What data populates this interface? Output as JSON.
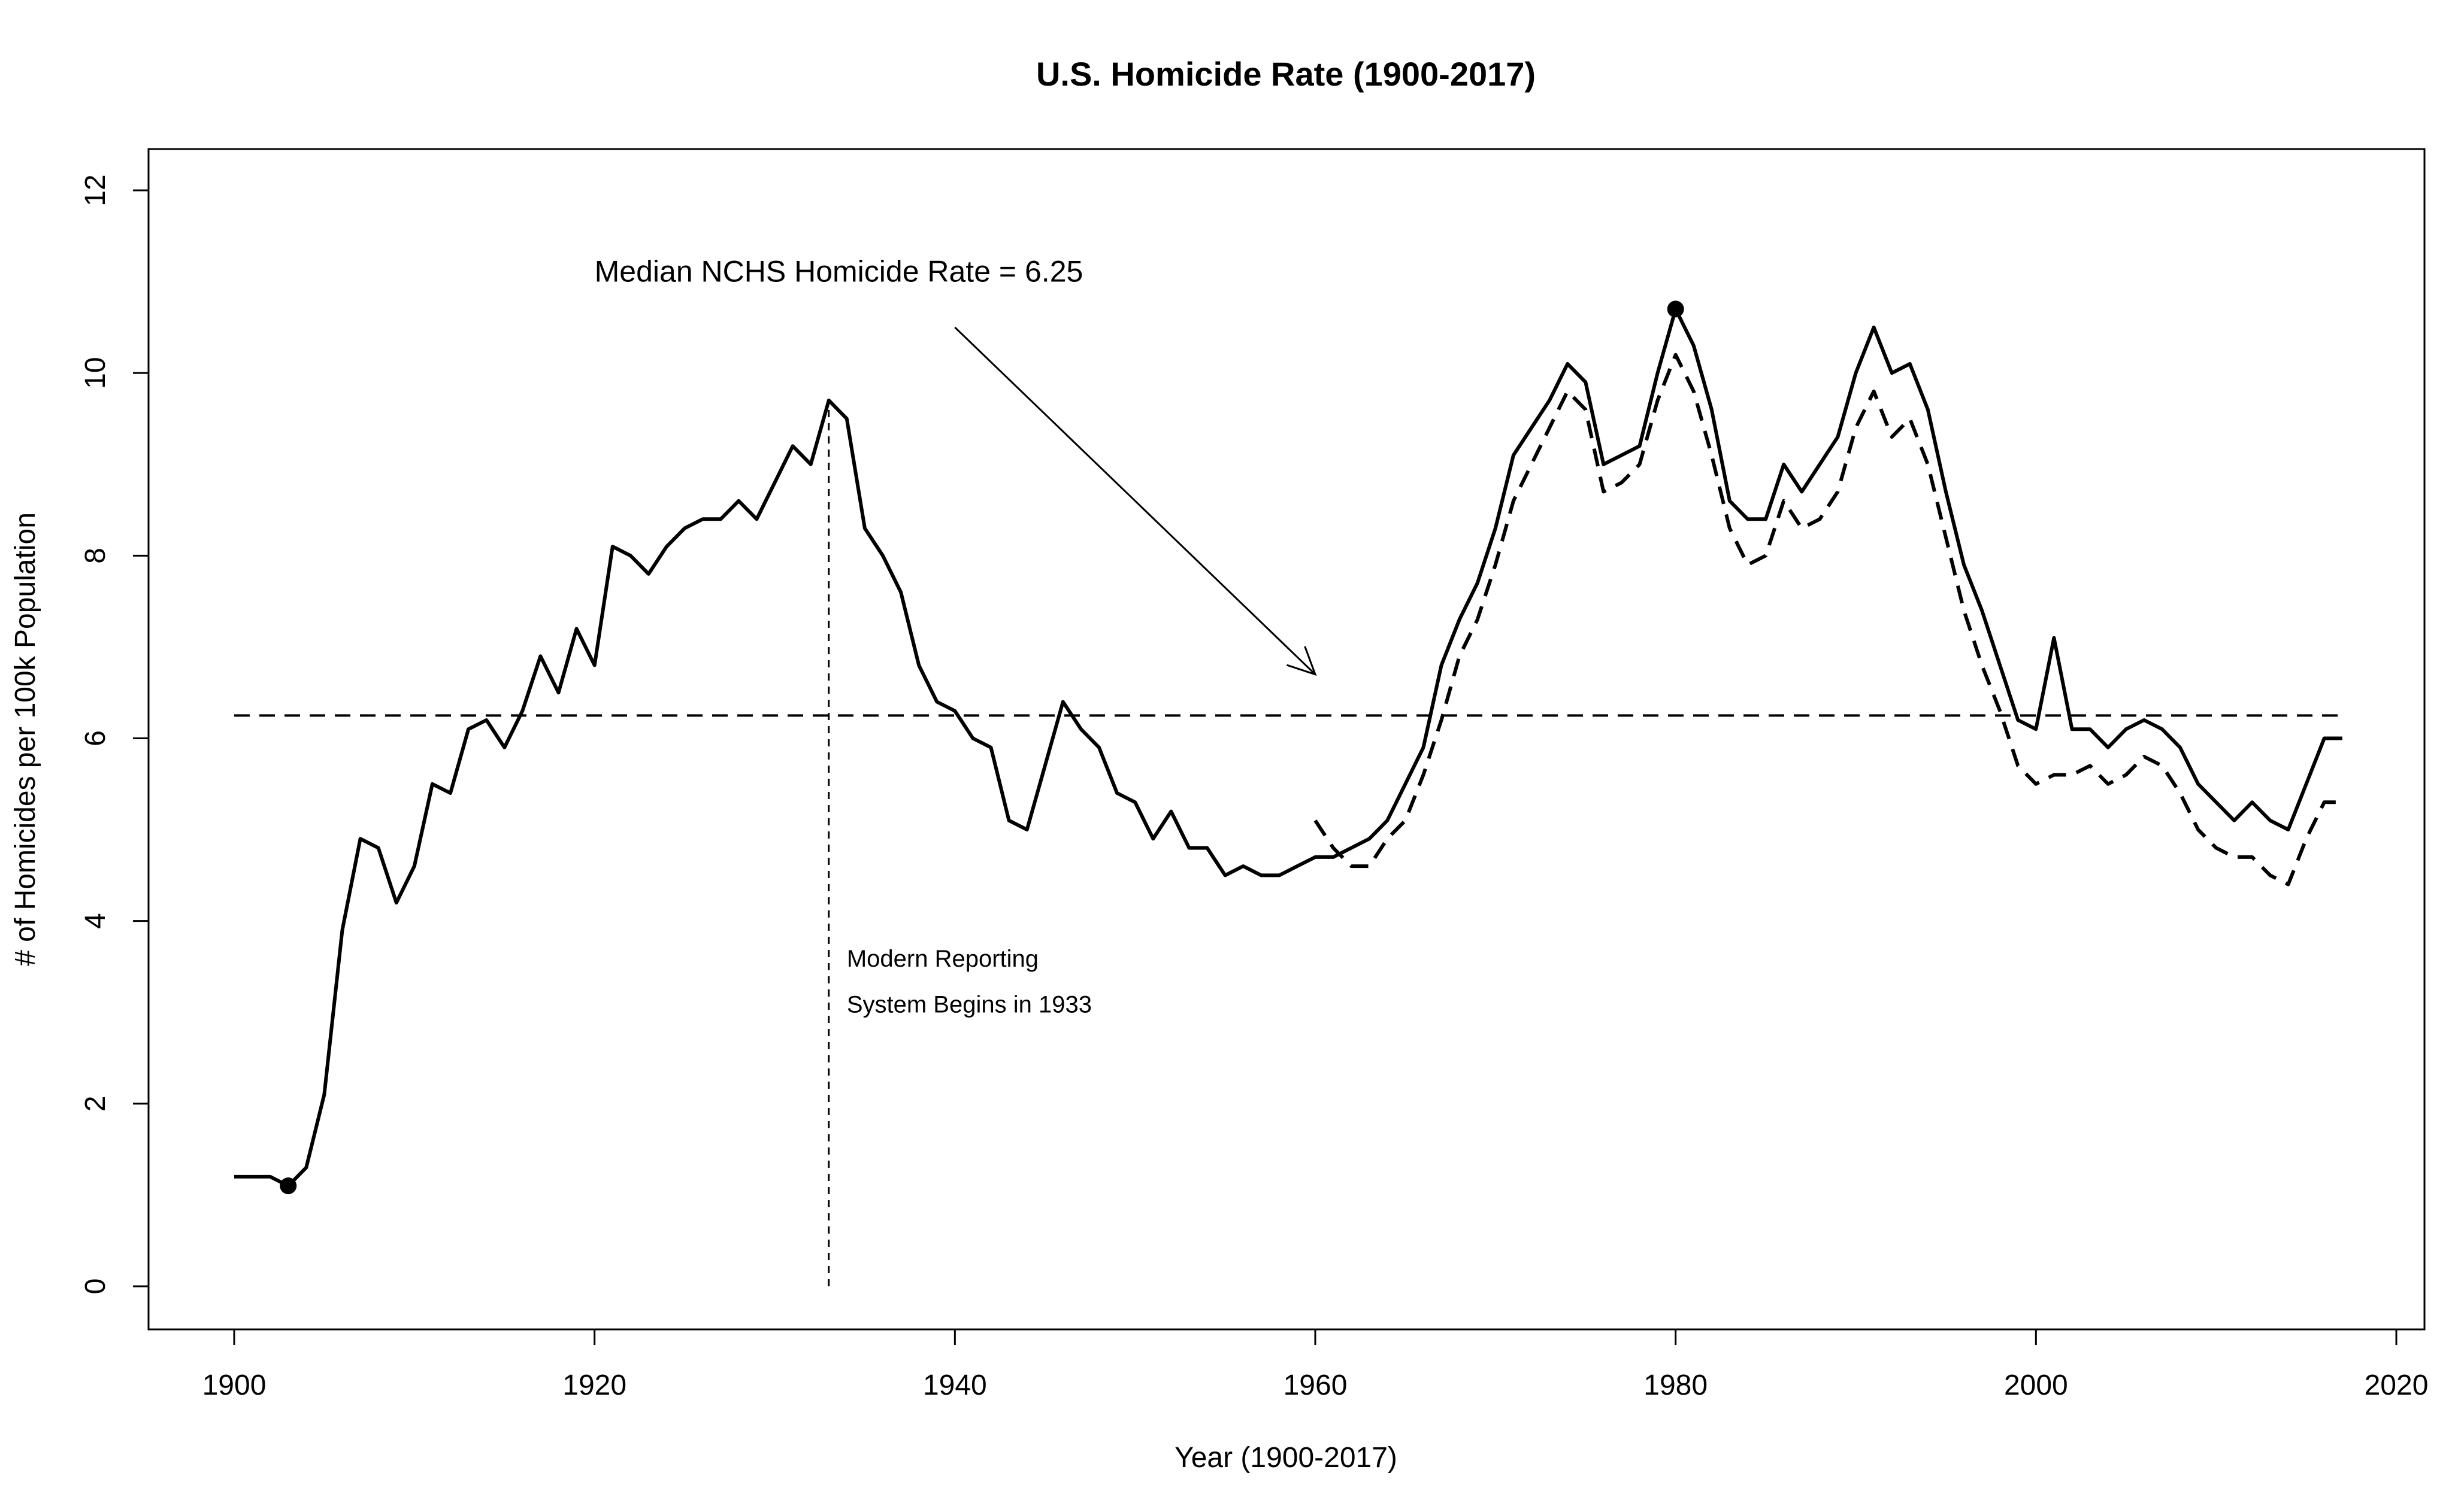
{
  "chart_data": {
    "type": "line",
    "title": "U.S. Homicide Rate (1900-2017)",
    "xlabel": "Year (1900-2017)",
    "ylabel": "# of Homicides per 100k Population",
    "xlim": [
      1900,
      2020
    ],
    "ylim": [
      0,
      12
    ],
    "xticks": [
      1900,
      1920,
      1940,
      1960,
      1980,
      2000,
      2020
    ],
    "yticks": [
      0,
      2,
      4,
      6,
      8,
      10,
      12
    ],
    "grid": false,
    "legend": "none",
    "series": [
      {
        "style": "solid",
        "x": [
          1900,
          1901,
          1902,
          1903,
          1904,
          1905,
          1906,
          1907,
          1908,
          1909,
          1910,
          1911,
          1912,
          1913,
          1914,
          1915,
          1916,
          1917,
          1918,
          1919,
          1920,
          1921,
          1922,
          1923,
          1924,
          1925,
          1926,
          1927,
          1928,
          1929,
          1930,
          1931,
          1932,
          1933,
          1934,
          1935,
          1936,
          1937,
          1938,
          1939,
          1940,
          1941,
          1942,
          1943,
          1944,
          1945,
          1946,
          1947,
          1948,
          1949,
          1950,
          1951,
          1952,
          1953,
          1954,
          1955,
          1956,
          1957,
          1958,
          1959,
          1960,
          1961,
          1962,
          1963,
          1964,
          1965,
          1966,
          1967,
          1968,
          1969,
          1970,
          1971,
          1972,
          1973,
          1974,
          1975,
          1976,
          1977,
          1978,
          1979,
          1980,
          1981,
          1982,
          1983,
          1984,
          1985,
          1986,
          1987,
          1988,
          1989,
          1990,
          1991,
          1992,
          1993,
          1994,
          1995,
          1996,
          1997,
          1998,
          1999,
          2000,
          2001,
          2002,
          2003,
          2004,
          2005,
          2006,
          2007,
          2008,
          2009,
          2010,
          2011,
          2012,
          2013,
          2014,
          2015,
          2016,
          2017
        ],
        "y": [
          1.2,
          1.2,
          1.2,
          1.1,
          1.3,
          2.1,
          3.9,
          4.9,
          4.8,
          4.2,
          4.6,
          5.5,
          5.4,
          6.1,
          6.2,
          5.9,
          6.3,
          6.9,
          6.5,
          7.2,
          6.8,
          8.1,
          8.0,
          7.8,
          8.1,
          8.3,
          8.4,
          8.4,
          8.6,
          8.4,
          8.8,
          9.2,
          9.0,
          9.7,
          9.5,
          8.3,
          8.0,
          7.6,
          6.8,
          6.4,
          6.3,
          6.0,
          5.9,
          5.1,
          5.0,
          5.7,
          6.4,
          6.1,
          5.9,
          5.4,
          5.3,
          4.9,
          5.2,
          4.8,
          4.8,
          4.5,
          4.6,
          4.5,
          4.5,
          4.6,
          4.7,
          4.7,
          4.8,
          4.9,
          5.1,
          5.5,
          5.9,
          6.8,
          7.3,
          7.7,
          8.3,
          9.1,
          9.4,
          9.7,
          10.1,
          9.9,
          9.0,
          9.1,
          9.2,
          10.0,
          10.7,
          10.3,
          9.6,
          8.6,
          8.4,
          8.4,
          9.0,
          8.7,
          9.0,
          9.3,
          10.0,
          10.5,
          10.0,
          10.1,
          9.6,
          8.7,
          7.9,
          7.4,
          6.8,
          6.2,
          6.1,
          7.1,
          6.1,
          6.1,
          5.9,
          6.1,
          6.2,
          6.1,
          5.9,
          5.5,
          5.3,
          5.1,
          5.3,
          5.1,
          5.0,
          5.5,
          6.0,
          6.0
        ]
      },
      {
        "style": "dashed",
        "x": [
          1960,
          1961,
          1962,
          1963,
          1964,
          1965,
          1966,
          1967,
          1968,
          1969,
          1970,
          1971,
          1972,
          1973,
          1974,
          1975,
          1976,
          1977,
          1978,
          1979,
          1980,
          1981,
          1982,
          1983,
          1984,
          1985,
          1986,
          1987,
          1988,
          1989,
          1990,
          1991,
          1992,
          1993,
          1994,
          1995,
          1996,
          1997,
          1998,
          1999,
          2000,
          2001,
          2002,
          2003,
          2004,
          2005,
          2006,
          2007,
          2008,
          2009,
          2010,
          2011,
          2012,
          2013,
          2014,
          2015,
          2016,
          2017
        ],
        "y": [
          5.1,
          4.8,
          4.6,
          4.6,
          4.9,
          5.1,
          5.6,
          6.2,
          6.9,
          7.3,
          7.9,
          8.6,
          9.0,
          9.4,
          9.8,
          9.6,
          8.7,
          8.8,
          9.0,
          9.7,
          10.2,
          9.8,
          9.1,
          8.3,
          7.9,
          8.0,
          8.6,
          8.3,
          8.4,
          8.7,
          9.4,
          9.8,
          9.3,
          9.5,
          9.0,
          8.2,
          7.4,
          6.8,
          6.3,
          5.7,
          5.5,
          5.6,
          5.6,
          5.7,
          5.5,
          5.6,
          5.8,
          5.7,
          5.4,
          5.0,
          4.8,
          4.7,
          4.7,
          4.5,
          4.4,
          4.9,
          5.3,
          5.3
        ]
      }
    ],
    "markers": [
      {
        "x": 1903,
        "y": 1.1
      },
      {
        "x": 1980,
        "y": 10.7
      }
    ],
    "reference_lines": {
      "horizontal": {
        "y": 6.25,
        "x_from": 1900,
        "x_to": 2017
      },
      "vertical": {
        "x": 1933,
        "y_from": 0,
        "y_to": 9.7
      }
    },
    "annotations": {
      "median": {
        "text": "Median NCHS Homicide Rate = 6.25",
        "x": 1920,
        "y": 11.0,
        "arrow_from": [
          1940,
          10.5
        ],
        "arrow_to": [
          1960,
          6.7
        ]
      },
      "reporting_line1": {
        "text": "Modern Reporting",
        "x": 1934,
        "y": 3.5
      },
      "reporting_line2": {
        "text": "System Begins in 1933",
        "x": 1934,
        "y": 3.0
      }
    }
  }
}
